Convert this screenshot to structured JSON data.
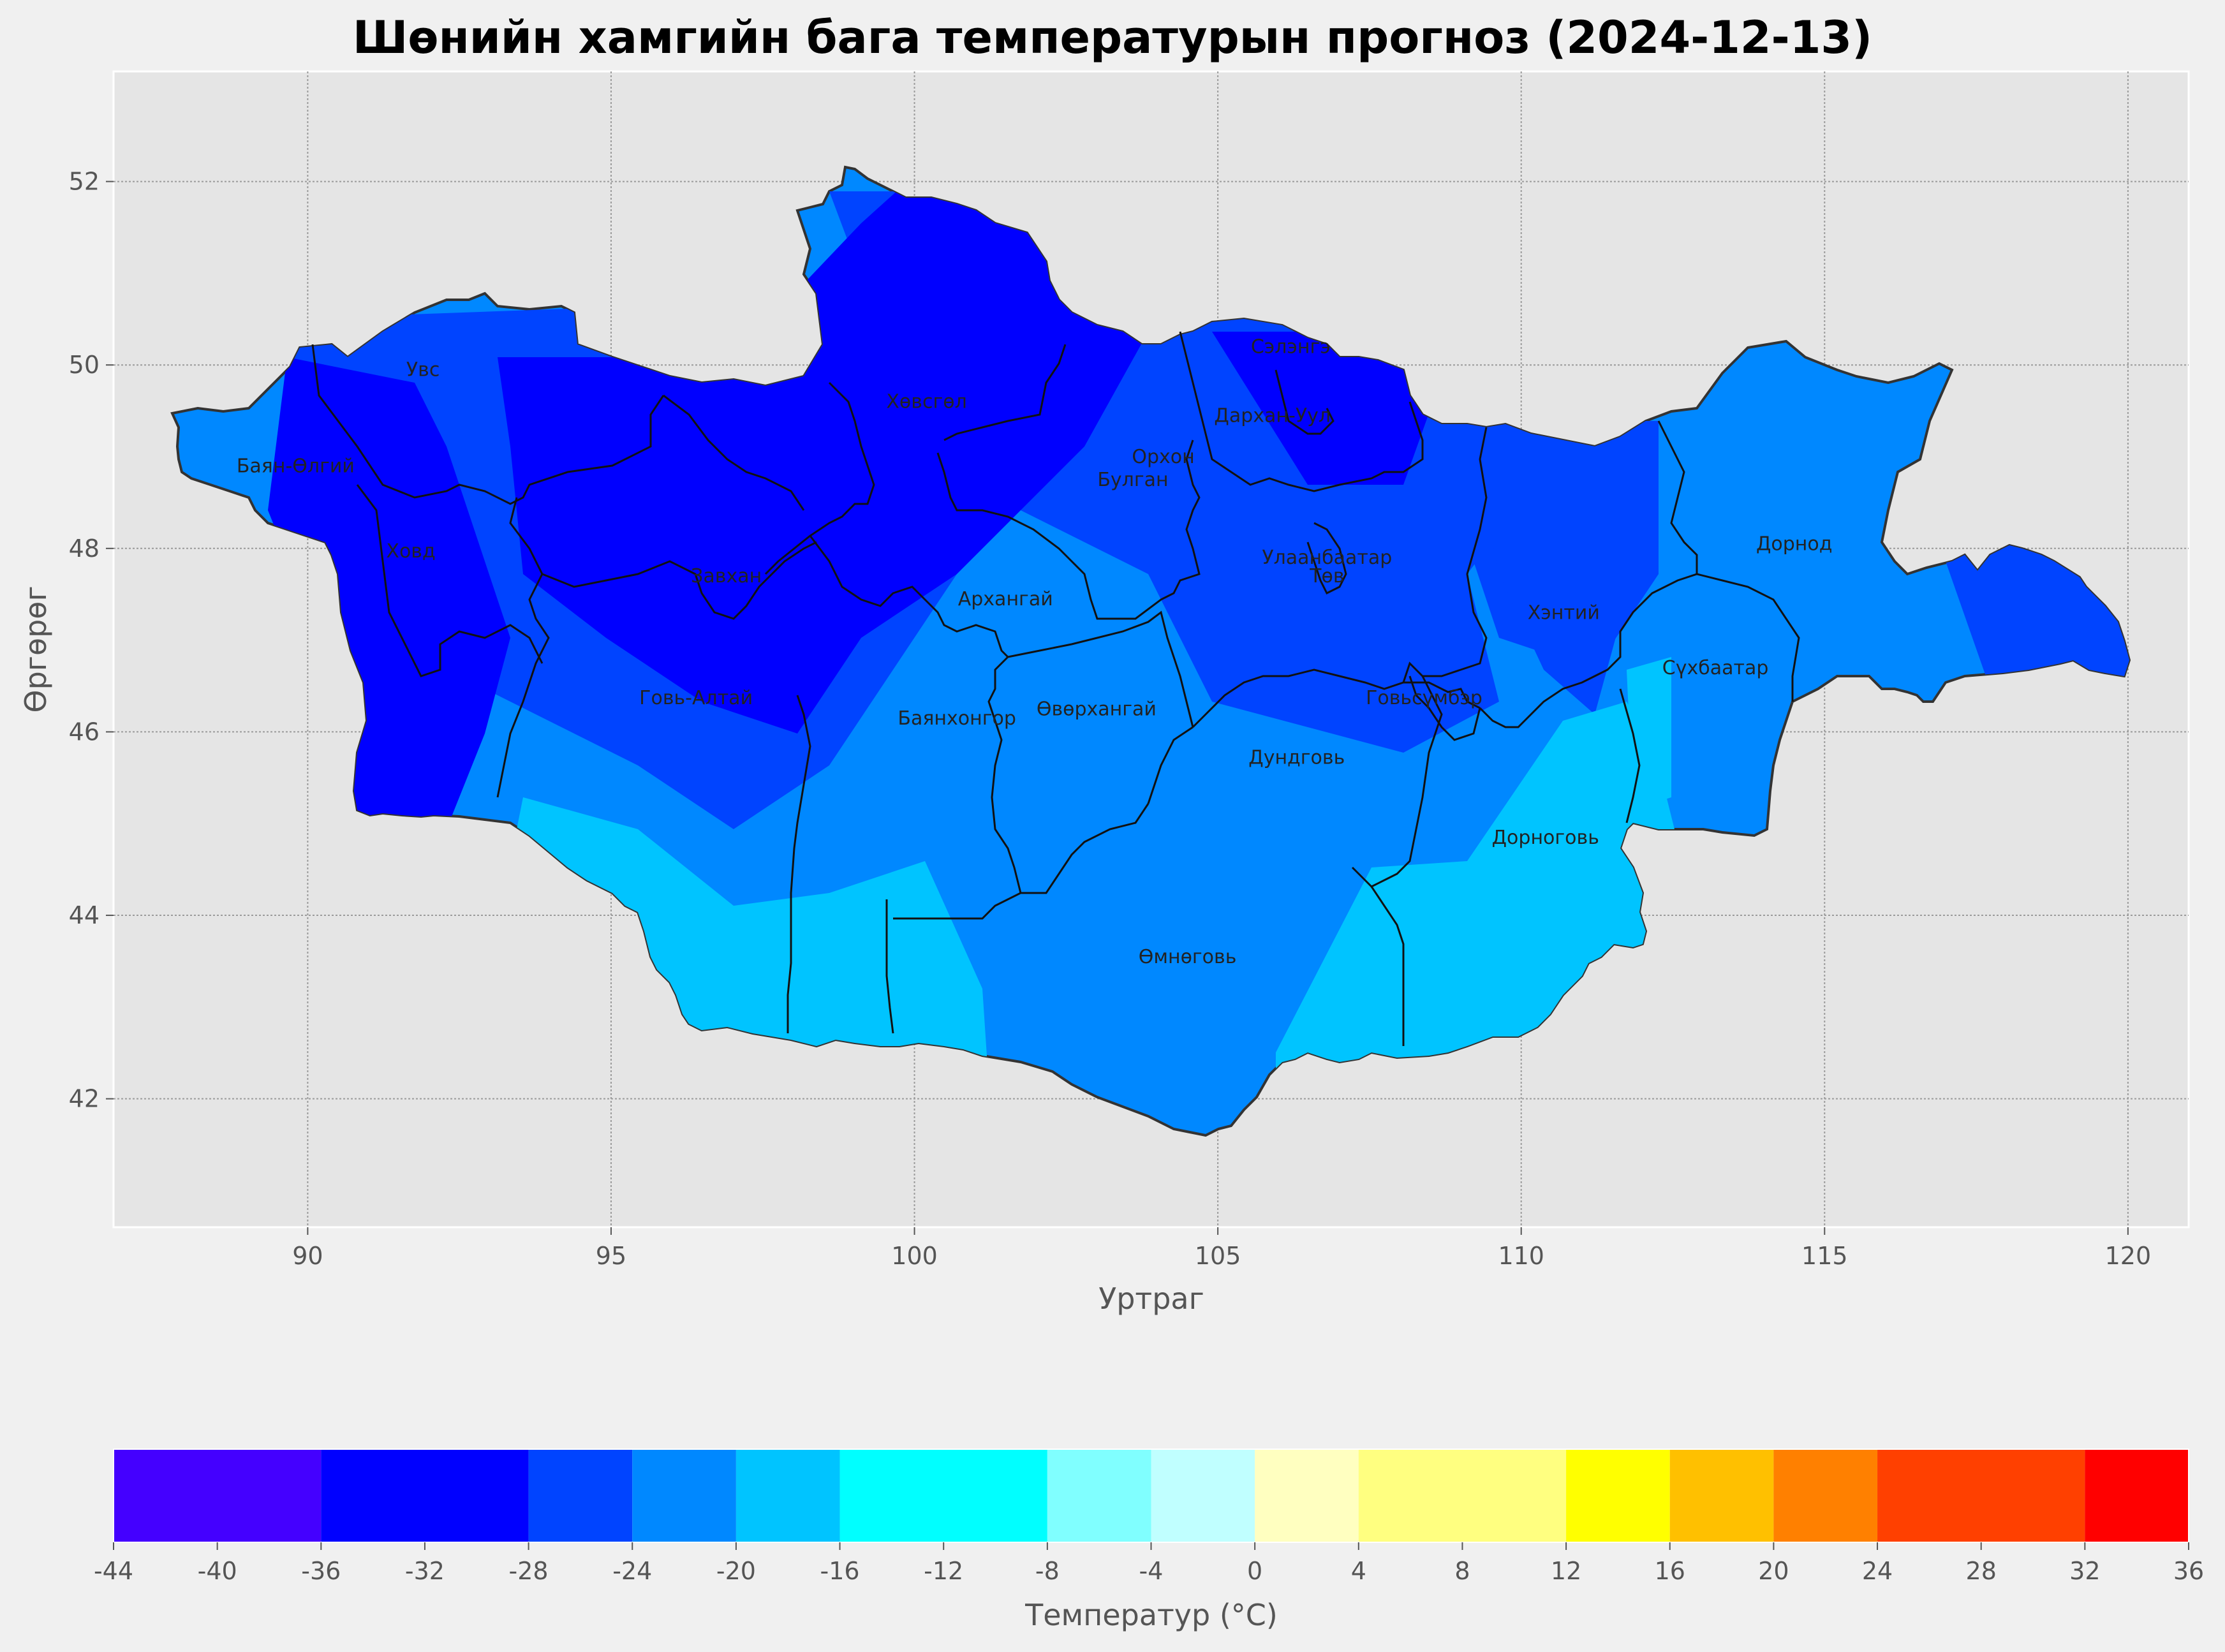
{
  "title": "Шөнийн хамгийн бага температурын прогноз (2024-12-13)",
  "map": {
    "xlabel": "Уртраг",
    "ylabel": "Өргөрөг",
    "xlim": [
      86.8,
      121
    ],
    "ylim": [
      40.6,
      53.2
    ],
    "x_ticks": [
      "90",
      "95",
      "100",
      "105",
      "110",
      "115",
      "120"
    ],
    "y_ticks": [
      "42",
      "44",
      "46",
      "48",
      "50",
      "52"
    ],
    "grid": true,
    "provinces": [
      {
        "name": "Увс",
        "lon": 91.9,
        "lat": 49.95
      },
      {
        "name": "Хөвсгөл",
        "lon": 100.2,
        "lat": 49.6
      },
      {
        "name": "Сэлэнгэ",
        "lon": 106.2,
        "lat": 50.2
      },
      {
        "name": "Баян-Өлгий",
        "lon": 89.8,
        "lat": 48.9
      },
      {
        "name": "Дархан-Уул",
        "lon": 105.9,
        "lat": 49.45
      },
      {
        "name": "Орхон",
        "lon": 104.1,
        "lat": 49.0
      },
      {
        "name": "Булган",
        "lon": 103.6,
        "lat": 48.75
      },
      {
        "name": "Ховд",
        "lon": 91.7,
        "lat": 47.97
      },
      {
        "name": "Завхан",
        "lon": 96.9,
        "lat": 47.7
      },
      {
        "name": "Улаанбаатар",
        "lon": 106.8,
        "lat": 47.9
      },
      {
        "name": "Төв",
        "lon": 106.8,
        "lat": 47.7
      },
      {
        "name": "Дорнод",
        "lon": 114.5,
        "lat": 48.05
      },
      {
        "name": "Архангай",
        "lon": 101.5,
        "lat": 47.45
      },
      {
        "name": "Хэнтий",
        "lon": 110.7,
        "lat": 47.3
      },
      {
        "name": "Сүхбаатар",
        "lon": 113.2,
        "lat": 46.7
      },
      {
        "name": "Говь-Алтай",
        "lon": 96.4,
        "lat": 46.37
      },
      {
        "name": "Говьсүмбэр",
        "lon": 108.4,
        "lat": 46.37
      },
      {
        "name": "Баянхонгор",
        "lon": 100.7,
        "lat": 46.15
      },
      {
        "name": "Өвөрхангай",
        "lon": 103.0,
        "lat": 46.25
      },
      {
        "name": "Дундговь",
        "lon": 106.3,
        "lat": 45.72
      },
      {
        "name": "Дорноговь",
        "lon": 110.4,
        "lat": 44.85
      },
      {
        "name": "Өмнөговь",
        "lon": 104.5,
        "lat": 43.55
      }
    ]
  },
  "colorbar": {
    "label": "Температур (°C)",
    "ticks": [
      "-44",
      "-40",
      "-36",
      "-32",
      "-28",
      "-24",
      "-20",
      "-16",
      "-12",
      "-8",
      "-4",
      "0",
      "4",
      "8",
      "12",
      "16",
      "20",
      "24",
      "28",
      "32",
      "36"
    ],
    "levels": [
      -44,
      -36,
      -28,
      -24,
      -20,
      -16,
      -8,
      -4,
      0,
      4,
      12,
      16,
      20,
      24,
      32,
      36
    ],
    "colors": [
      "#4400ff",
      "#0000ff",
      "#0044ff",
      "#0088ff",
      "#00c4ff",
      "#00ffff",
      "#80ffff",
      "#c0ffff",
      "#ffffc0",
      "#ffff80",
      "#ffff00",
      "#ffc000",
      "#ff8000",
      "#ff4000",
      "#ff0000"
    ]
  },
  "colors": {
    "background": "#f0f0f0",
    "axes_bg": "#e5e5e5",
    "country_fill": "#0088ff"
  }
}
